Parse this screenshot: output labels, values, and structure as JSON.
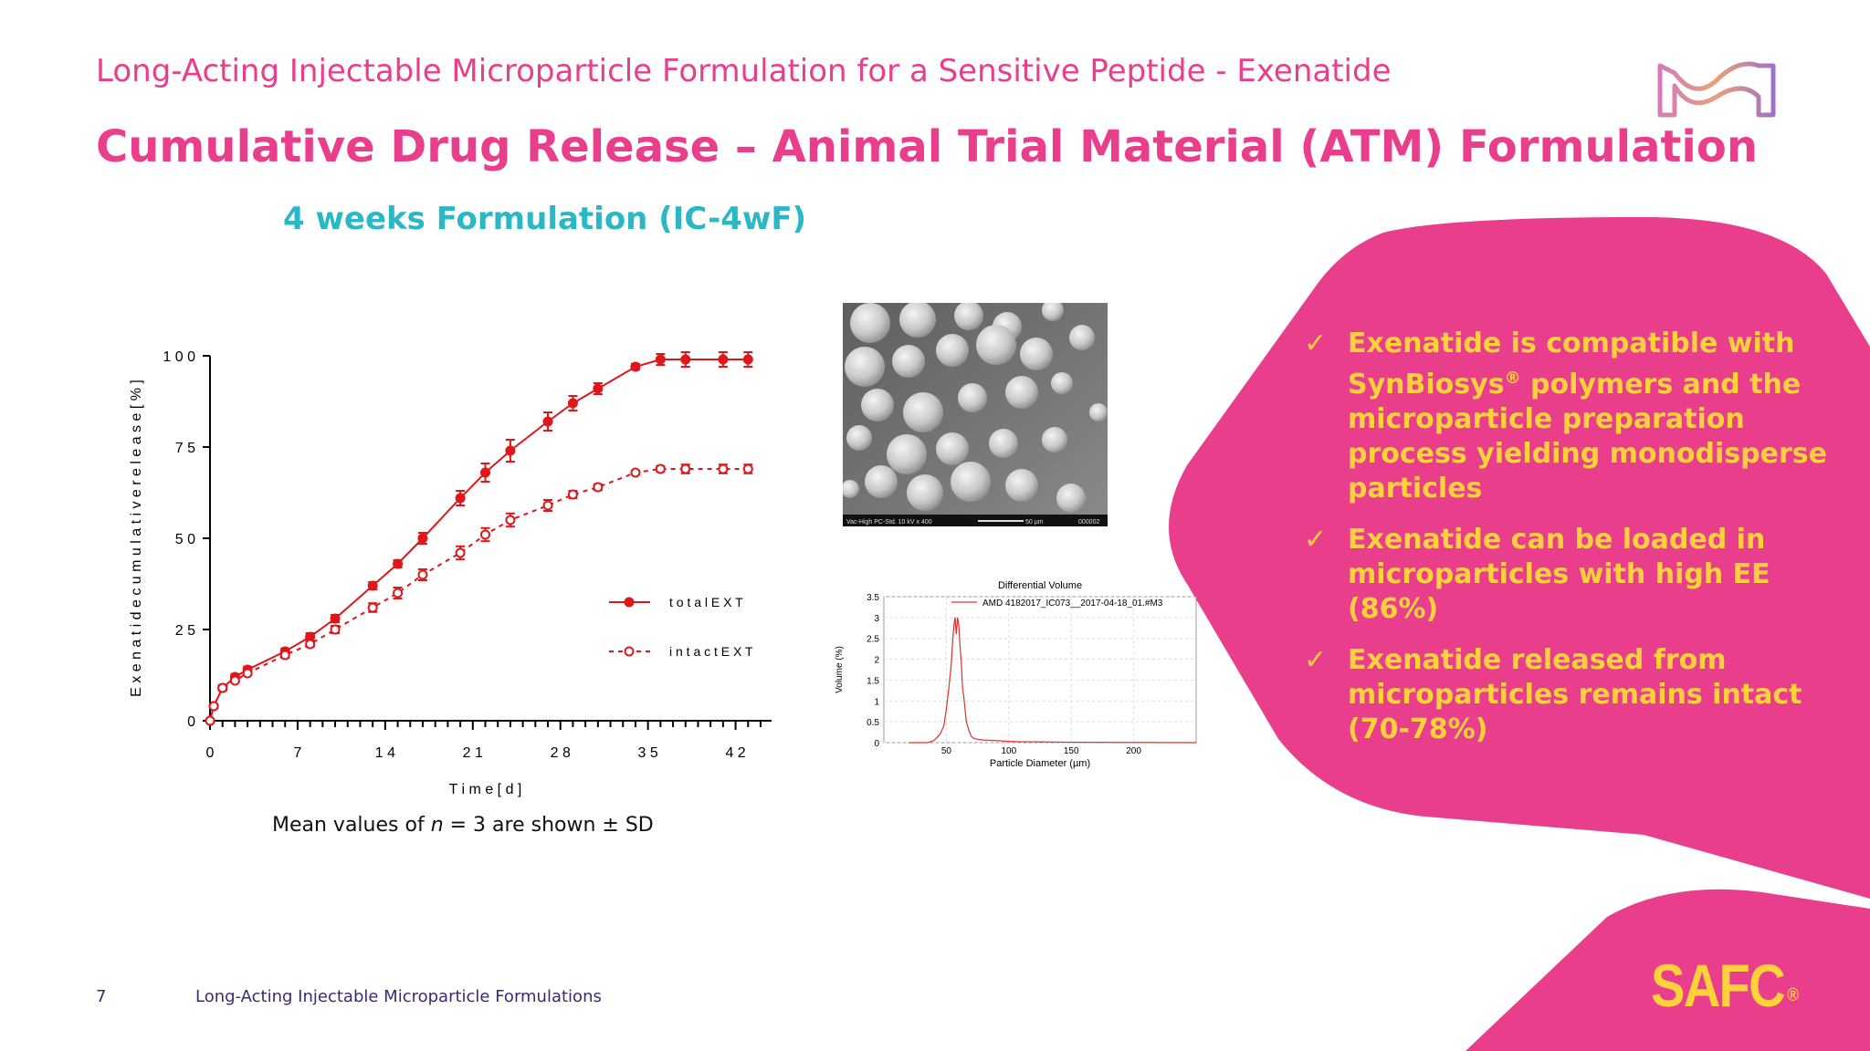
{
  "header": {
    "supertitle": "Long-Acting Injectable Microparticle Formulation for a Sensitive Peptide - Exenatide",
    "title": "Cumulative Drug Release – Animal Trial Material (ATM) Formulation",
    "subtitle": "4 weeks Formulation (IC-4wF)"
  },
  "chart_note": {
    "prefix": "Mean values of ",
    "n_symbol": "n",
    "suffix": " = 3 are shown ± SD"
  },
  "bullets": [
    {
      "check": "✓",
      "text": "Exenatide is compatible with SynBiosys",
      "sup": "®",
      "text_after": " polymers and the microparticle preparation process yielding monodisperse particles"
    },
    {
      "check": "✓",
      "text": "Exenatide can be loaded in microparticles with high EE (86%)"
    },
    {
      "check": "✓",
      "text": "Exenatide released from microparticles remains intact (70-78%)"
    }
  ],
  "sem": {
    "caption": "Vac-High   PC-Std.   10 kV   x 400",
    "scale_label": "50 µm",
    "id": "000002"
  },
  "footer": {
    "page": "7",
    "text": "Long-Acting Injectable Microparticle Formulations",
    "brand": "SAFC",
    "brand_reg": "®"
  },
  "colors": {
    "magenta": "#e83e8c",
    "teal": "#2ab8c6",
    "yellow": "#ffd23c",
    "red": "#e0161b",
    "navy": "#3c2a70"
  },
  "chart_data": [
    {
      "type": "line",
      "title": "",
      "xlabel": "T i m e [ d ]",
      "ylabel": "E x e n a t i d e c u m u l a t i v e r e l e a s e [ % ]",
      "xlim": [
        0,
        44
      ],
      "ylim": [
        0,
        100
      ],
      "xticks": [
        0,
        7,
        14,
        21,
        28,
        35,
        42
      ],
      "xtick_labels": [
        "0",
        "7",
        "1 4",
        "2 1",
        "2 8",
        "3 5",
        "4 2"
      ],
      "yticks": [
        0,
        25,
        50,
        75,
        100
      ],
      "ytick_labels": [
        "0",
        "2 5",
        "5 0",
        "7 5",
        "1 0 0"
      ],
      "legend_position": "right",
      "series": [
        {
          "name": "t o t a l E X T",
          "style": "solid-filled",
          "x": [
            0,
            0.3,
            1,
            2,
            3,
            6,
            8,
            10,
            13,
            15,
            17,
            20,
            22,
            24,
            27,
            29,
            31,
            34,
            36,
            38,
            41,
            43
          ],
          "y": [
            0,
            4,
            9,
            12,
            14,
            19,
            23,
            28,
            37,
            43,
            50,
            61,
            68,
            74,
            82,
            87,
            91,
            97,
            99,
            99,
            99,
            99
          ],
          "err": [
            0,
            0.5,
            0.8,
            0.8,
            0.8,
            0.8,
            1,
            1,
            1,
            1,
            1.5,
            2,
            2.5,
            3,
            2.5,
            2,
            1.5,
            0.8,
            1.5,
            2,
            2,
            2
          ]
        },
        {
          "name": "i n t a c t E X T",
          "style": "dashed-open",
          "x": [
            0,
            0.3,
            1,
            2,
            3,
            6,
            8,
            10,
            13,
            15,
            17,
            20,
            22,
            24,
            27,
            29,
            31,
            34,
            36,
            38,
            41,
            43
          ],
          "y": [
            0,
            4,
            9,
            11,
            13,
            18,
            21,
            25,
            31,
            35,
            40,
            46,
            51,
            55,
            59,
            62,
            64,
            68,
            69,
            69,
            69,
            69
          ],
          "err": [
            0,
            0.5,
            0.5,
            0.5,
            0.5,
            0.8,
            0.8,
            1,
            1.2,
            1.5,
            1.5,
            1.8,
            1.8,
            1.8,
            1.5,
            1,
            0.8,
            0.5,
            0.8,
            1.2,
            1.2,
            1.2
          ]
        }
      ]
    },
    {
      "type": "line",
      "title": "Differential Volume",
      "xlabel": "Particle Diameter (µm)",
      "ylabel": "Volume (%)",
      "xlim": [
        0,
        250
      ],
      "ylim": [
        0,
        3.5
      ],
      "xticks": [
        50,
        100,
        150,
        200
      ],
      "xtick_labels": [
        "50",
        "100",
        "150",
        "200"
      ],
      "yticks": [
        0,
        0.5,
        1,
        1.5,
        2,
        2.5,
        3,
        3.5
      ],
      "ytick_labels": [
        "0",
        "0.5",
        "1",
        "1.5",
        "2",
        "2.5",
        "3",
        "3.5"
      ],
      "legend_position": "top",
      "series": [
        {
          "name": "AMD 4182017_IC073__2017-04-18_01.#M3",
          "x": [
            20,
            35,
            40,
            45,
            48,
            50,
            52,
            54,
            55,
            56,
            57,
            58,
            59,
            60,
            61,
            62,
            63,
            64,
            65,
            66,
            68,
            70,
            72,
            75,
            80,
            90,
            100,
            110,
            120,
            150,
            250
          ],
          "y": [
            0,
            0,
            0.05,
            0.2,
            0.4,
            0.8,
            1.3,
            1.9,
            2.4,
            2.8,
            3.0,
            2.6,
            3.0,
            2.8,
            2.3,
            1.9,
            1.3,
            1.1,
            0.8,
            0.5,
            0.3,
            0.15,
            0.1,
            0.08,
            0.06,
            0.05,
            0.03,
            0.02,
            0.02,
            0.01,
            0
          ]
        }
      ]
    }
  ]
}
